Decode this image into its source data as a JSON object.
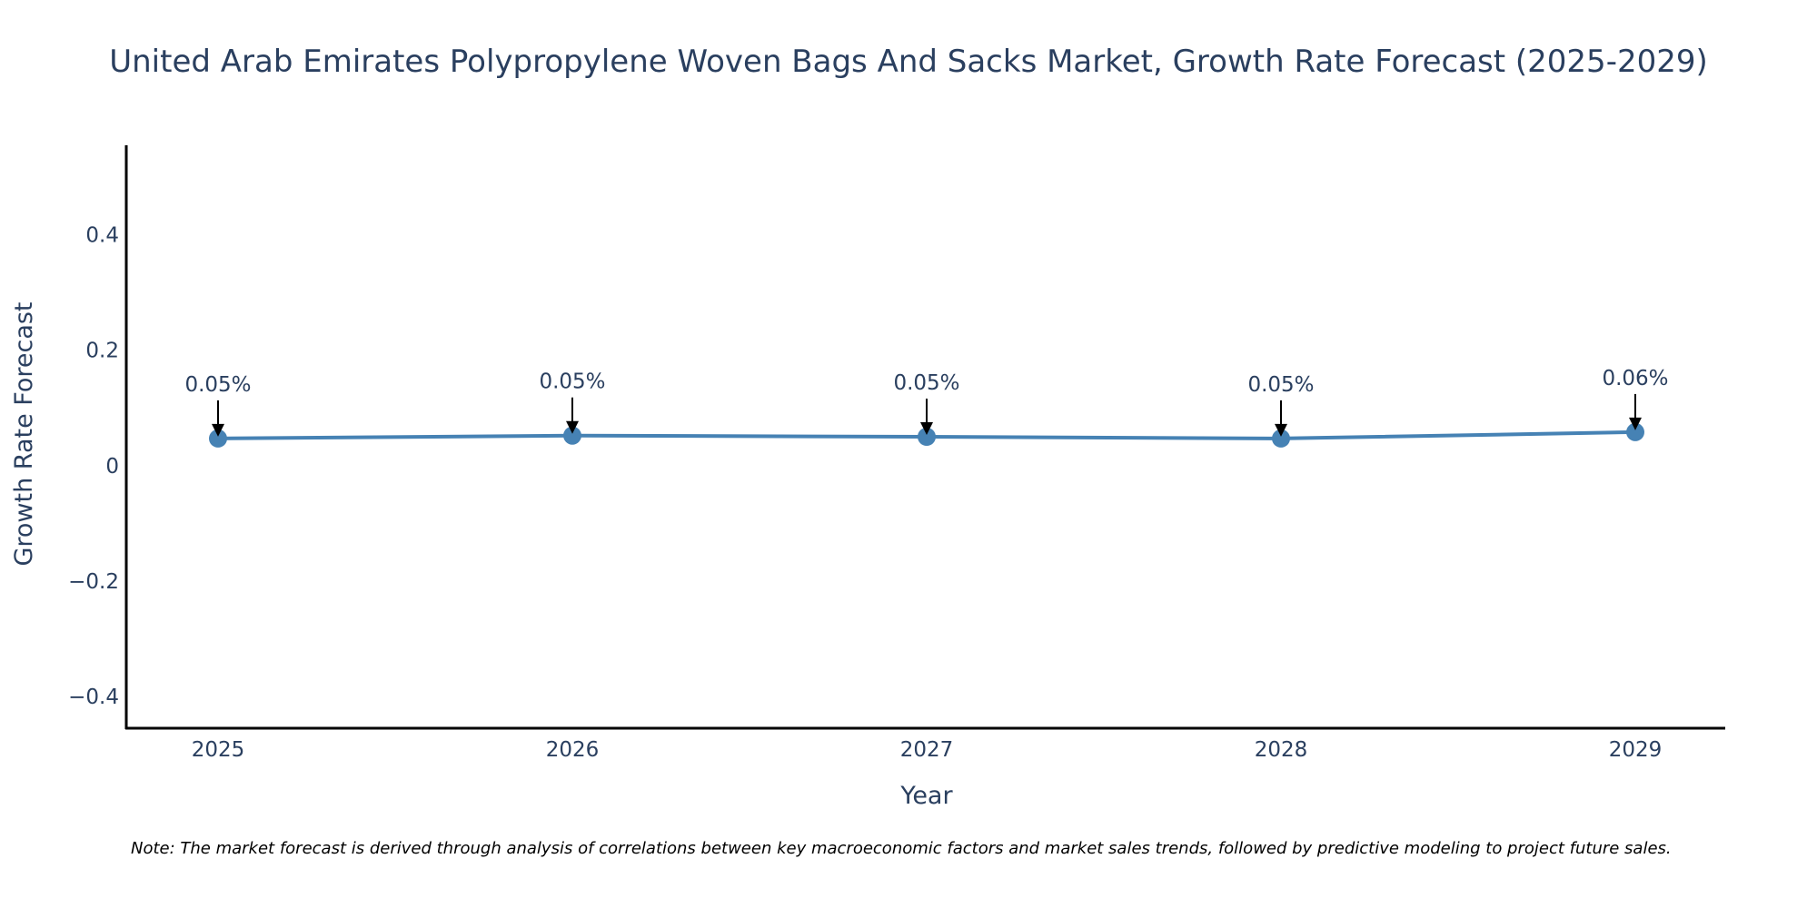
{
  "chart_data": {
    "type": "line",
    "title": "United Arab Emirates Polypropylene Woven Bags And Sacks Market, Growth Rate Forecast (2025-2029)",
    "xlabel": "Year",
    "ylabel": "Growth Rate Forecast",
    "categories": [
      "2025",
      "2026",
      "2027",
      "2028",
      "2029"
    ],
    "series": [
      {
        "name": "Growth Rate Forecast",
        "values": [
          0.047,
          0.052,
          0.05,
          0.047,
          0.058
        ],
        "labels": [
          "0.05%",
          "0.05%",
          "0.05%",
          "0.05%",
          "0.06%"
        ]
      }
    ],
    "ylim": [
      -0.455,
      0.555
    ],
    "yticks": [
      0.4,
      0.2,
      0,
      -0.2,
      -0.4
    ],
    "ytick_labels": [
      "0.4",
      "0.2",
      "0",
      "−0.2",
      "−0.4"
    ],
    "grid": false,
    "line_color": "#4682b4",
    "note": "Note: The market forecast is derived through analysis of correlations between key macroeconomic factors and market sales trends, followed by predictive modeling to project future sales."
  }
}
